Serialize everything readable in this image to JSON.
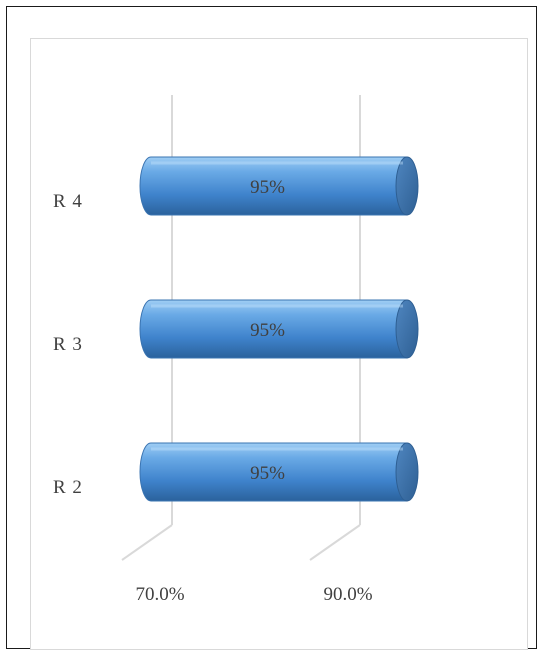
{
  "chart_data": {
    "type": "bar",
    "orientation": "horizontal",
    "style": "3d-cylinder",
    "categories": [
      "R 2",
      "R 3",
      "R 4"
    ],
    "values": [
      95,
      95,
      95
    ],
    "data_labels": [
      "95%",
      "95%",
      "95%"
    ],
    "x_ticks": [
      "70.0%",
      "90.0%"
    ],
    "x_tick_values": [
      70,
      90
    ],
    "title": "",
    "xlabel": "",
    "ylabel": "",
    "grid": true,
    "legend": "none",
    "colors": {
      "bar_light": "#8ec2ef",
      "bar_mid": "#4a90d9",
      "bar_dark": "#2a5f97",
      "bar_cap": "#3d74ad",
      "grid": "#d9d9d9",
      "text": "#404040"
    }
  }
}
